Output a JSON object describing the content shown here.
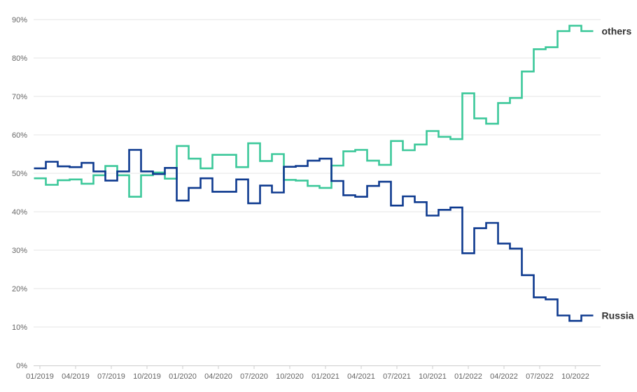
{
  "chart_data": {
    "type": "line",
    "step": true,
    "title": "",
    "xlabel": "",
    "ylabel": "",
    "ylim": [
      0,
      90
    ],
    "y_ticks": [
      "0%",
      "10%",
      "20%",
      "30%",
      "40%",
      "50%",
      "60%",
      "70%",
      "80%",
      "90%"
    ],
    "x_ticks": [
      "01/2019",
      "04/2019",
      "07/2019",
      "10/2019",
      "01/2020",
      "04/2020",
      "07/2020",
      "10/2020",
      "01/2021",
      "04/2021",
      "07/2021",
      "10/2021",
      "01/2022",
      "04/2022",
      "07/2022",
      "10/2022"
    ],
    "grid": true,
    "months": [
      "01/2019",
      "02/2019",
      "03/2019",
      "04/2019",
      "05/2019",
      "06/2019",
      "07/2019",
      "08/2019",
      "09/2019",
      "10/2019",
      "11/2019",
      "12/2019",
      "01/2020",
      "02/2020",
      "03/2020",
      "04/2020",
      "05/2020",
      "06/2020",
      "07/2020",
      "08/2020",
      "09/2020",
      "10/2020",
      "11/2020",
      "12/2020",
      "01/2021",
      "02/2021",
      "03/2021",
      "04/2021",
      "05/2021",
      "06/2021",
      "07/2021",
      "08/2021",
      "09/2021",
      "10/2021",
      "11/2021",
      "12/2021",
      "01/2022",
      "02/2022",
      "03/2022",
      "04/2022",
      "05/2022",
      "06/2022",
      "07/2022",
      "08/2022",
      "09/2022",
      "10/2022",
      "11/2022"
    ],
    "series": [
      {
        "name": "others",
        "color": "#3cc89a",
        "values": [
          48.7,
          47.0,
          48.2,
          48.4,
          47.3,
          49.5,
          51.9,
          49.5,
          43.9,
          49.5,
          50.2,
          48.6,
          57.1,
          53.8,
          51.3,
          54.8,
          54.8,
          51.6,
          57.8,
          53.2,
          55.0,
          48.3,
          48.1,
          46.7,
          46.2,
          52.0,
          55.7,
          56.1,
          53.3,
          52.2,
          58.4,
          56.0,
          57.5,
          61.0,
          59.5,
          58.9,
          70.8,
          64.3,
          62.9,
          68.3,
          69.6,
          76.5,
          82.3,
          82.8,
          87.0,
          88.4,
          87.0
        ]
      },
      {
        "name": "Russia",
        "color": "#0e3a8f",
        "values": [
          51.3,
          53.0,
          51.8,
          51.6,
          52.7,
          50.5,
          48.1,
          50.5,
          56.1,
          50.5,
          49.8,
          51.4,
          42.9,
          46.2,
          48.7,
          45.2,
          45.2,
          48.4,
          42.2,
          46.8,
          45.0,
          51.7,
          51.9,
          53.3,
          53.8,
          48.0,
          44.3,
          43.9,
          46.7,
          47.8,
          41.6,
          44.0,
          42.5,
          39.0,
          40.5,
          41.1,
          29.2,
          35.7,
          37.1,
          31.7,
          30.4,
          23.5,
          17.7,
          17.2,
          13.0,
          11.6,
          13.0
        ]
      }
    ]
  }
}
